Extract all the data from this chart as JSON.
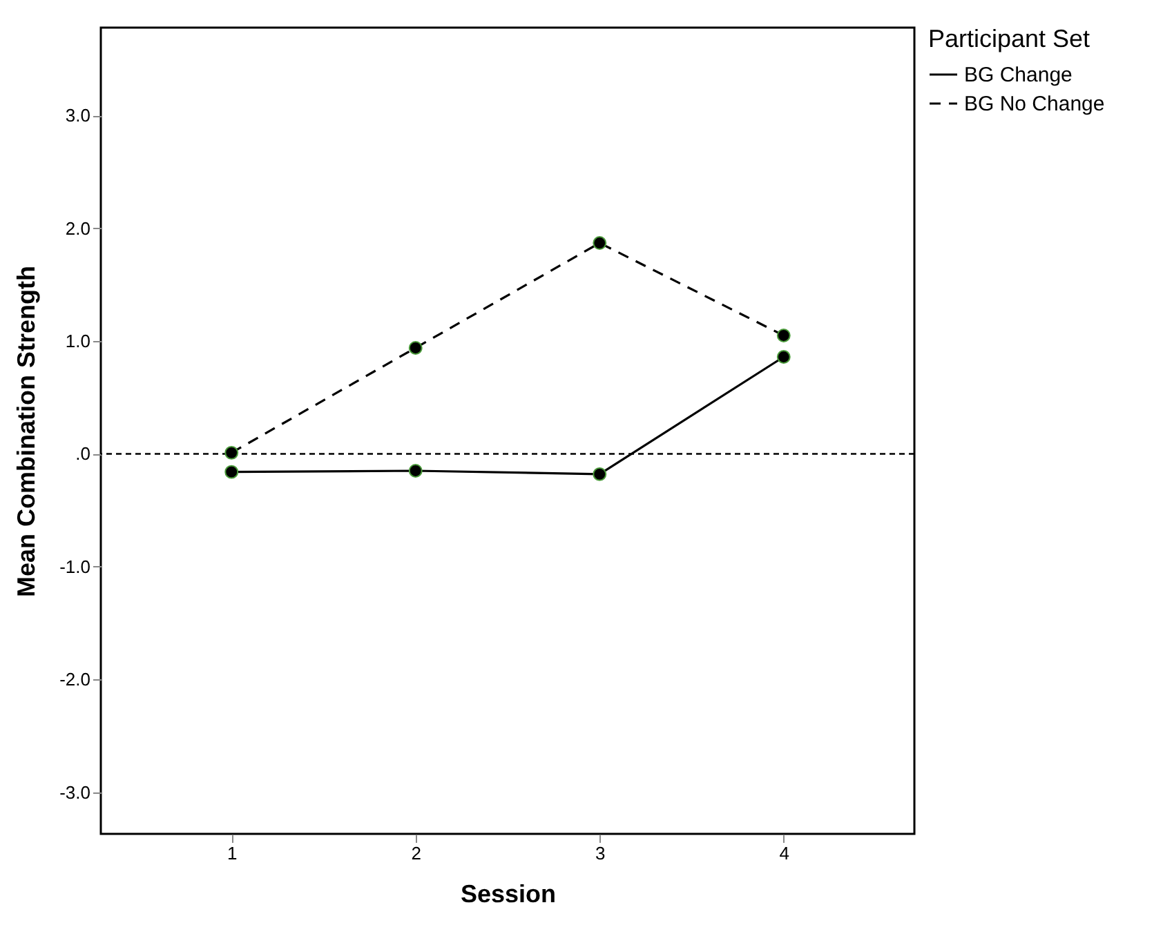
{
  "chart_data": {
    "type": "line",
    "xlabel": "Session",
    "ylabel": "Mean Combination Strength",
    "legend_title": "Participant Set",
    "x": [
      1,
      2,
      3,
      4
    ],
    "series": [
      {
        "name": "BG Change",
        "color": "#000000",
        "line_style": "solid",
        "values": [
          -0.16,
          -0.15,
          -0.18,
          0.86
        ]
      },
      {
        "name": "BG No Change",
        "color": "#000000",
        "line_style": "dashed",
        "values": [
          0.01,
          0.94,
          1.87,
          1.05
        ]
      }
    ],
    "xlim": [
      0.29,
      4.71
    ],
    "xticks": [
      1,
      2,
      3,
      4
    ],
    "ylim": [
      -3.37,
      3.78
    ],
    "yticks": [
      {
        "value": -3,
        "label": "-3.0"
      },
      {
        "value": -2,
        "label": "-2.0"
      },
      {
        "value": -1,
        "label": "-1.0"
      },
      {
        "value": 0,
        "label": ".0"
      },
      {
        "value": 1,
        "label": "1.0"
      },
      {
        "value": 2,
        "label": "2.0"
      },
      {
        "value": 3,
        "label": "3.0"
      }
    ],
    "ref_lines": [
      {
        "axis": "y",
        "value": 0,
        "line_style": "dashed"
      }
    ],
    "marker": "circle",
    "legend": "top right",
    "grid": false
  }
}
